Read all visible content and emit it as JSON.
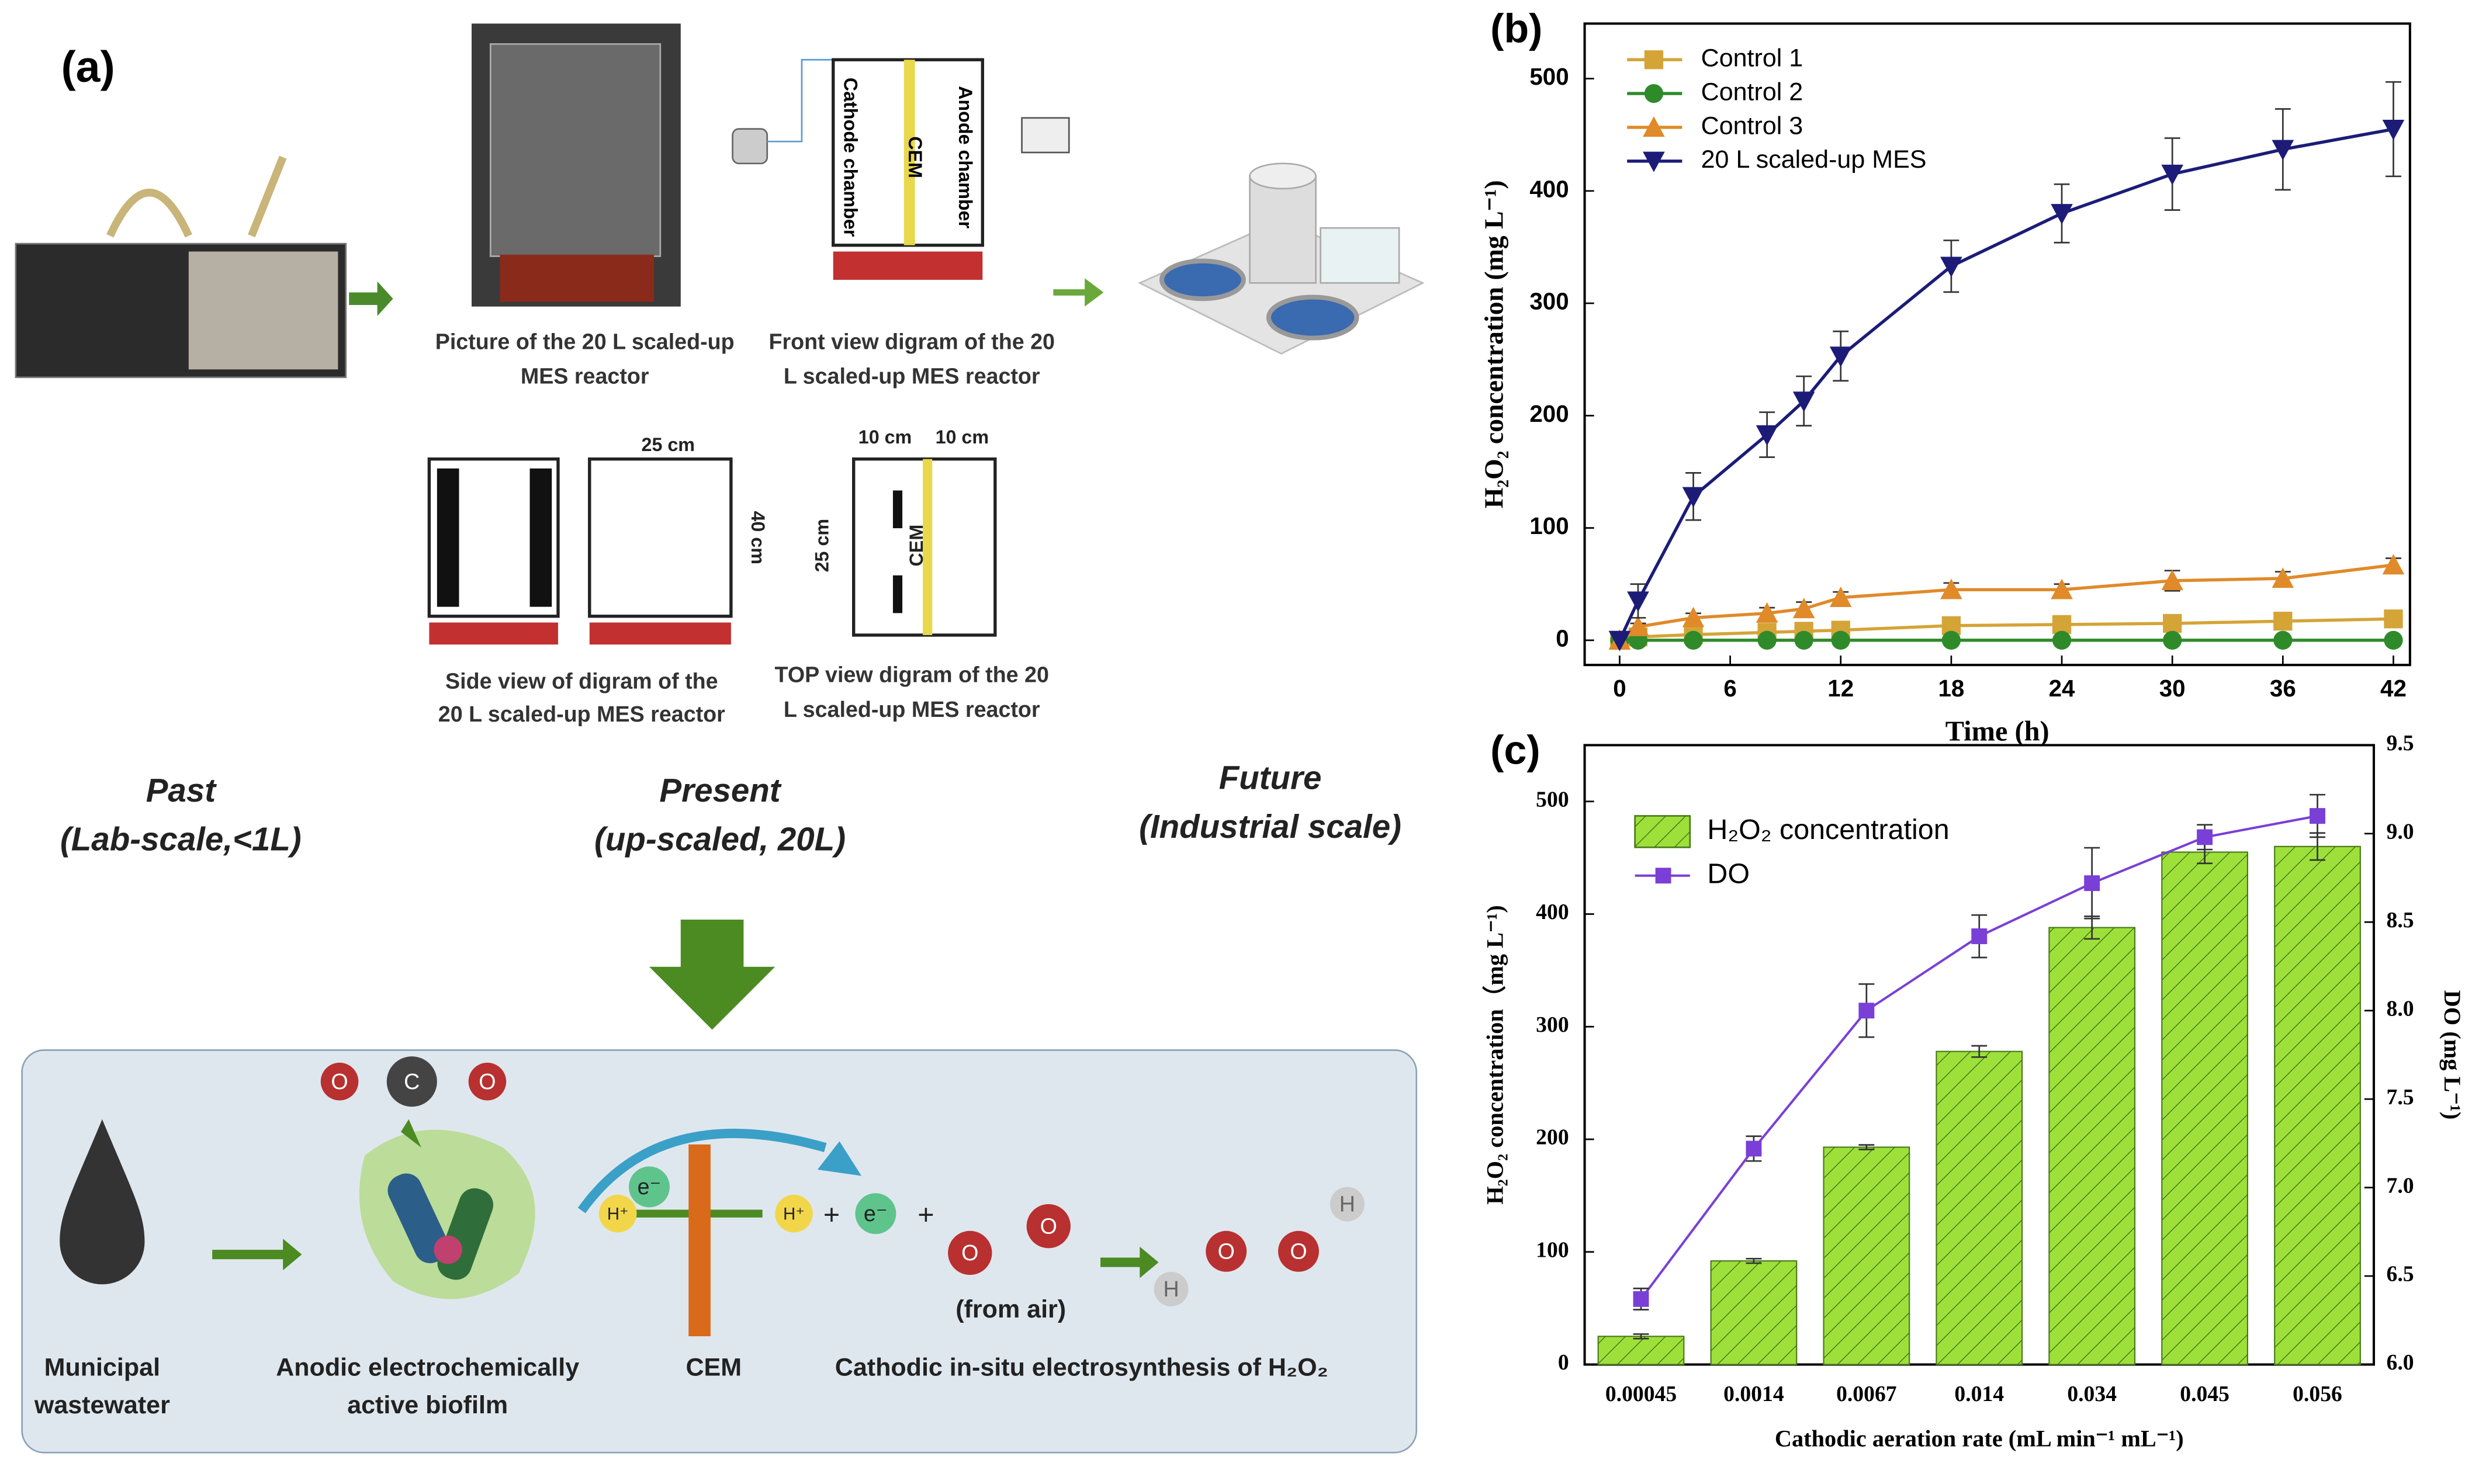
{
  "diagram": {
    "panel_label": "(a)",
    "photo_caption": [
      "Picture of the 20 L scaled-up",
      "MES reactor"
    ],
    "front_caption": [
      "Front view digram of the 20",
      "L  scaled-up MES reactor"
    ],
    "side_caption": [
      "Side view of  digram of the",
      "20 L scaled-up MES reactor"
    ],
    "top_caption": [
      "TOP view digram of the 20",
      "L scaled-up MES reactor"
    ],
    "front_labels": [
      "Cathode chamber",
      "CEM",
      "Anode chamber"
    ],
    "side_dims": [
      "25 cm",
      "40 cm"
    ],
    "top_dims": [
      "10 cm",
      "10 cm",
      "25 cm"
    ],
    "top_cem": "CEM",
    "stages": [
      {
        "title": "Past",
        "subtitle": "(Lab-scale,<1L)"
      },
      {
        "title": "Present",
        "subtitle": "(up-scaled, 20L)"
      },
      {
        "title": "Future",
        "subtitle": "(Industrial scale)"
      }
    ],
    "process": {
      "source": [
        "Municipal",
        "wastewater"
      ],
      "biofilm": [
        "Anodic electrochemically",
        "active biofilm"
      ],
      "membrane": "CEM",
      "cathode": "Cathodic  in-situ electrosynthesis of H₂O₂",
      "air": "(from air)",
      "electron": "e⁻",
      "proton": "H⁺",
      "plus": "+"
    },
    "atoms": {
      "oxygen": "O",
      "carbon": "C",
      "hydrogen": "H"
    }
  },
  "chart_data": [
    {
      "type": "line",
      "panel_label": "(b)",
      "x_label": "Time (h)",
      "y_label": "H₂O₂ concentration (mg L⁻¹)",
      "x": [
        0,
        1,
        4,
        8,
        10,
        12,
        18,
        24,
        30,
        36,
        42
      ],
      "xlim": [
        -1.9,
        42.9
      ],
      "xticks": [
        0,
        6,
        12,
        18,
        24,
        30,
        36,
        42
      ],
      "ylim": [
        -22,
        549
      ],
      "yticks": [
        0,
        100,
        200,
        300,
        400,
        500
      ],
      "legend": "upper left",
      "series": [
        {
          "name": "Control 1",
          "color": "#d4a437",
          "marker": "square",
          "values": [
            0,
            3,
            5,
            7,
            8,
            9,
            13,
            14,
            15,
            17,
            19
          ]
        },
        {
          "name": "Control 2",
          "color": "#2f8a2a",
          "marker": "circle",
          "values": [
            0,
            0,
            0,
            0,
            0,
            0,
            0,
            0,
            0,
            0,
            0
          ]
        },
        {
          "name": "Control 3",
          "color": "#e08a2a",
          "marker": "triangle-up",
          "values": [
            0,
            12,
            20,
            24,
            28,
            38,
            45,
            45,
            53,
            55,
            67
          ],
          "errors": [
            0,
            3,
            4,
            5,
            6,
            5,
            6,
            5,
            9,
            6,
            6
          ]
        },
        {
          "name": "20 L scaled-up MES",
          "color": "#1c1c78",
          "marker": "triangle-down",
          "values": [
            0,
            35,
            128,
            183,
            213,
            253,
            333,
            380,
            415,
            437,
            455
          ],
          "errors": [
            0,
            15,
            21,
            20,
            22,
            22,
            23,
            26,
            32,
            36,
            42
          ]
        }
      ]
    },
    {
      "type": "bar",
      "panel_label": "(c)",
      "x_label": "Cathodic aeration rate (mL min⁻¹ mL⁻¹)",
      "y_label": "H₂O₂ concentration（mg L⁻¹)",
      "y2_label": "DO (mg L⁻¹)",
      "categories": [
        "0.00045",
        "0.0014",
        "0.0067",
        "0.014",
        "0.034",
        "0.045",
        "0.056"
      ],
      "ylim": [
        0,
        550
      ],
      "yticks": [
        0,
        100,
        200,
        300,
        400,
        500
      ],
      "y2lim": [
        6.0,
        9.5
      ],
      "y2ticks": [
        {
          "value": 6,
          "label": "6.0"
        },
        6.5,
        {
          "value": 7,
          "label": "7.0"
        },
        7.5,
        {
          "value": 8,
          "label": "8.0"
        },
        8.5,
        {
          "value": 9,
          "label": "9.0"
        },
        9.5
      ],
      "legend": "upper left",
      "series": [
        {
          "name": "H₂O₂ concentration",
          "color": "#9ee03a",
          "values": [
            25,
            92,
            193,
            278,
            388,
            455,
            460
          ],
          "errors": [
            2,
            2,
            2,
            5,
            10,
            10,
            12
          ]
        },
        {
          "name": "DO",
          "color": "#7a3fd6",
          "axis": "y2",
          "values": [
            6.37,
            7.22,
            8.0,
            8.42,
            8.72,
            8.98,
            9.1
          ],
          "errors": [
            0.06,
            0.07,
            0.15,
            0.12,
            0.2,
            0.07,
            0.12
          ]
        }
      ]
    }
  ]
}
